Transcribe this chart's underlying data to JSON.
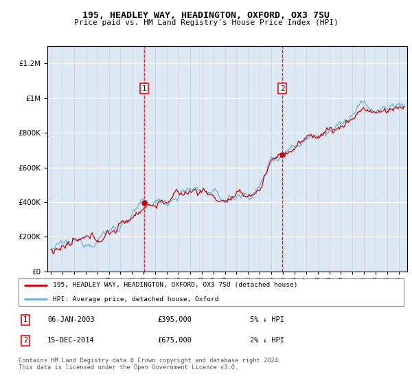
{
  "title1": "195, HEADLEY WAY, HEADINGTON, OXFORD, OX3 7SU",
  "title2": "Price paid vs. HM Land Registry's House Price Index (HPI)",
  "ytick_values": [
    0,
    200000,
    400000,
    600000,
    800000,
    1000000,
    1200000
  ],
  "ylim": [
    0,
    1300000
  ],
  "xlim_start": 1994.7,
  "xlim_end": 2025.7,
  "bg_color": "#dce9f5",
  "hpi_color": "#6baed6",
  "price_color": "#cc0000",
  "legend_entry1": "195, HEADLEY WAY, HEADINGTON, OXFORD, OX3 7SU (detached house)",
  "legend_entry2": "HPI: Average price, detached house, Oxford",
  "marker1_x": 2003.03,
  "marker1_y": 395000,
  "marker2_x": 2014.96,
  "marker2_y": 675000,
  "marker1_date": "06-JAN-2003",
  "marker1_price": "£395,000",
  "marker1_hpi": "5% ↓ HPI",
  "marker2_date": "15-DEC-2014",
  "marker2_price": "£675,000",
  "marker2_hpi": "2% ↓ HPI",
  "footer": "Contains HM Land Registry data © Crown copyright and database right 2024.\nThis data is licensed under the Open Government Licence v3.0.",
  "xtick_years": [
    1995,
    1996,
    1997,
    1998,
    1999,
    2000,
    2001,
    2002,
    2003,
    2004,
    2005,
    2006,
    2007,
    2008,
    2009,
    2010,
    2011,
    2012,
    2013,
    2014,
    2015,
    2016,
    2017,
    2018,
    2019,
    2020,
    2021,
    2022,
    2023,
    2024,
    2025
  ]
}
